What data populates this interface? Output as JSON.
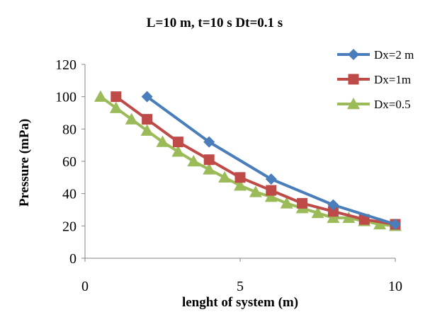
{
  "chart_data": {
    "type": "line",
    "title": "L=10 m, t=10 s Dt=0.1 s",
    "xlabel": "lenght of system (m)",
    "ylabel": "Pressure (mPa)",
    "xlim": [
      0,
      10
    ],
    "ylim": [
      0,
      120
    ],
    "xticks": [
      0,
      5,
      10
    ],
    "yticks": [
      0,
      20,
      40,
      60,
      80,
      100,
      120
    ],
    "grid": false,
    "legend_position": "top-right",
    "series": [
      {
        "name": "Dx=2 m",
        "color": "#4a7ebb",
        "marker": "diamond",
        "x": [
          2,
          4,
          6,
          8,
          10
        ],
        "y": [
          100,
          72,
          49,
          33,
          21
        ]
      },
      {
        "name": "Dx=1m",
        "color": "#be4b48",
        "marker": "square",
        "x": [
          1,
          2,
          3,
          4,
          5,
          6,
          7,
          8,
          9,
          10
        ],
        "y": [
          100,
          86,
          72,
          61,
          50,
          42,
          34,
          29,
          24,
          21
        ]
      },
      {
        "name": "Dx=0.5",
        "color": "#9bbb59",
        "marker": "triangle",
        "x": [
          0.5,
          1,
          1.5,
          2,
          2.5,
          3,
          3.5,
          4,
          4.5,
          5,
          5.5,
          6,
          6.5,
          7,
          7.5,
          8,
          8.5,
          9,
          9.5,
          10
        ],
        "y": [
          100,
          93,
          86,
          79,
          72,
          66,
          60,
          55,
          50,
          45,
          41,
          38,
          34,
          31,
          28,
          25,
          25,
          23,
          21,
          20
        ]
      }
    ]
  }
}
